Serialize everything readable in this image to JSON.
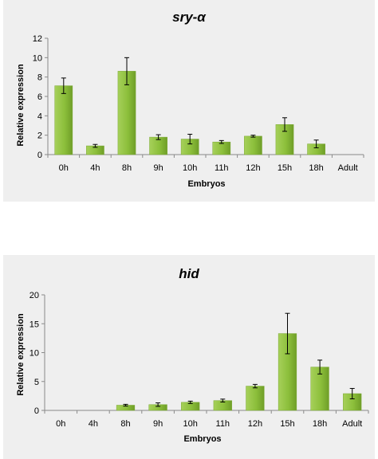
{
  "chart_data": [
    {
      "type": "bar",
      "title": "sry-α",
      "xlabel": "Embryos",
      "ylabel": "Relative expression",
      "categories": [
        "0h",
        "4h",
        "8h",
        "9h",
        "10h",
        "11h",
        "12h",
        "15h",
        "18h",
        "Adult"
      ],
      "values": [
        7.1,
        0.9,
        8.6,
        1.8,
        1.6,
        1.3,
        1.9,
        3.1,
        1.1,
        0
      ],
      "errors": [
        0.8,
        0.15,
        1.4,
        0.25,
        0.5,
        0.15,
        0.1,
        0.7,
        0.4,
        0
      ],
      "ylim": [
        0,
        12
      ],
      "yticks": [
        0,
        2,
        4,
        6,
        8,
        10,
        12
      ],
      "bar_color": "#8dbf3c",
      "grid": false
    },
    {
      "type": "bar",
      "title": "hid",
      "xlabel": "Embryos",
      "ylabel": "Relative expression",
      "categories": [
        "0h",
        "4h",
        "8h",
        "9h",
        "10h",
        "11h",
        "12h",
        "15h",
        "18h",
        "Adult"
      ],
      "values": [
        0,
        0,
        0.9,
        1.0,
        1.4,
        1.7,
        4.2,
        13.3,
        7.5,
        2.9
      ],
      "errors": [
        0,
        0,
        0.15,
        0.3,
        0.2,
        0.25,
        0.3,
        3.5,
        1.2,
        0.9
      ],
      "ylim": [
        0,
        20
      ],
      "yticks": [
        0,
        5,
        10,
        15,
        20
      ],
      "bar_color": "#8dbf3c",
      "grid": false
    }
  ]
}
